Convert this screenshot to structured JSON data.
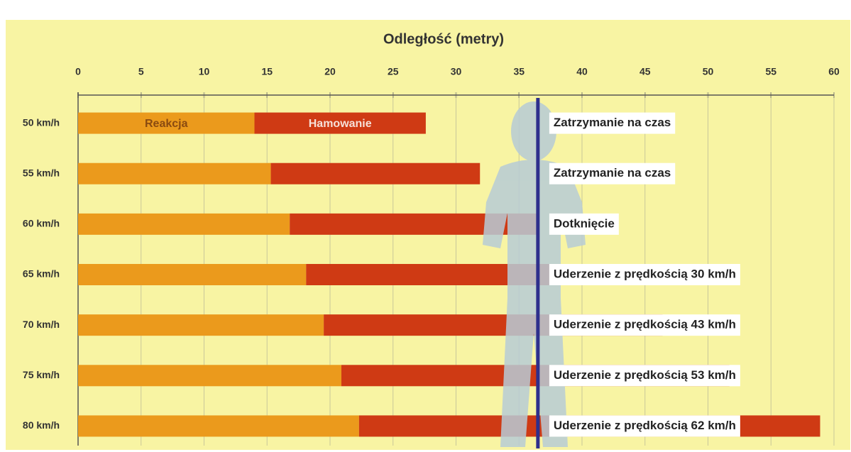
{
  "chart_data": {
    "type": "bar",
    "orientation": "horizontal",
    "stacked": true,
    "title": "Odległość (metry)",
    "categories": [
      "50 km/h",
      "55 km/h",
      "60 km/h",
      "65 km/h",
      "70 km/h",
      "75 km/h",
      "80 km/h"
    ],
    "series": [
      {
        "name": "Reakcja",
        "color": "#eb9a1c",
        "values": [
          14.0,
          15.3,
          16.8,
          18.1,
          19.5,
          20.9,
          22.3
        ]
      },
      {
        "name": "Hamowanie",
        "color": "#cf3a14",
        "values": [
          13.6,
          16.6,
          19.7,
          22.9,
          26.9,
          30.8,
          36.6
        ]
      }
    ],
    "annotations": [
      "Zatrzymanie na czas",
      "Zatrzymanie na czas",
      "Dotknięcie",
      "Uderzenie z prędkością 30 km/h",
      "Uderzenie z prędkością 43 km/h",
      "Uderzenie z prędkością 53 km/h",
      "Uderzenie z prędkością 62 km/h"
    ],
    "obstacle_distance": 36.5,
    "obstacle_color": "#2e2f8c",
    "xlim": [
      0,
      60
    ],
    "xticks": [
      0,
      5,
      10,
      15,
      20,
      25,
      30,
      35,
      40,
      45,
      50,
      55,
      60
    ],
    "grid": true
  }
}
